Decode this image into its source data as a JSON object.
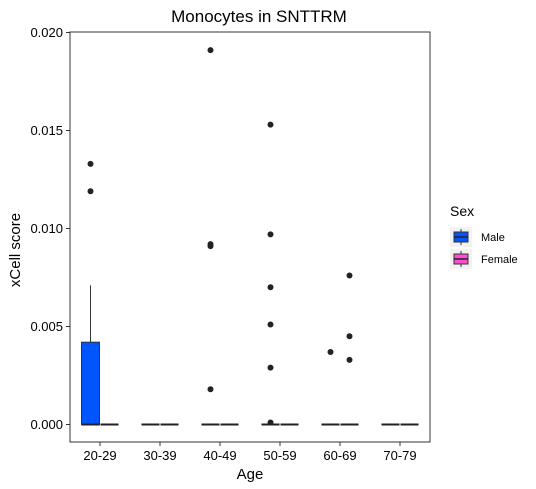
{
  "chart_data": {
    "type": "boxplot",
    "title": "Monocytes in SNTTRM",
    "xlabel": "Age",
    "ylabel": "xCell score",
    "ylim": [
      0,
      0.02
    ],
    "y_ticks": [
      "0.000",
      "0.005",
      "0.010",
      "0.015",
      "0.020"
    ],
    "categories": [
      "20-29",
      "30-39",
      "40-49",
      "50-59",
      "60-69",
      "70-79"
    ],
    "legend": {
      "title": "Sex",
      "position": "right",
      "entries": [
        {
          "label": "Male",
          "color": "#0055FF"
        },
        {
          "label": "Female",
          "color": "#FF4FD0"
        }
      ]
    },
    "grid": false,
    "series": [
      {
        "name": "Male",
        "color": "#0055FF",
        "boxes": [
          {
            "category": "20-29",
            "min": 0,
            "q1": 0,
            "median": 0,
            "q3": 0.0042,
            "max": 0.0071,
            "outliers": [
              0.0133,
              0.0119
            ]
          },
          {
            "category": "30-39",
            "min": 0,
            "q1": 0,
            "median": 0,
            "q3": 0,
            "max": 0,
            "outliers": []
          },
          {
            "category": "40-49",
            "min": 0,
            "q1": 0,
            "median": 0,
            "q3": 0,
            "max": 0,
            "outliers": [
              0.0191,
              0.0092,
              0.0091,
              0.0018
            ]
          },
          {
            "category": "50-59",
            "min": 0,
            "q1": 0,
            "median": 0,
            "q3": 0,
            "max": 0,
            "outliers": [
              0.0153,
              0.0097,
              0.007,
              0.0051,
              0.0029,
              0.0001
            ]
          },
          {
            "category": "60-69",
            "min": 0,
            "q1": 0,
            "median": 0,
            "q3": 0,
            "max": 0,
            "outliers": [
              0.0037
            ]
          },
          {
            "category": "70-79",
            "min": 0,
            "q1": 0,
            "median": 0,
            "q3": 0,
            "max": 0,
            "outliers": []
          }
        ]
      },
      {
        "name": "Female",
        "color": "#FF4FD0",
        "boxes": [
          {
            "category": "20-29",
            "min": 0,
            "q1": 0,
            "median": 0,
            "q3": 0,
            "max": 0,
            "outliers": []
          },
          {
            "category": "30-39",
            "min": 0,
            "q1": 0,
            "median": 0,
            "q3": 0,
            "max": 0,
            "outliers": []
          },
          {
            "category": "40-49",
            "min": 0,
            "q1": 0,
            "median": 0,
            "q3": 0,
            "max": 0,
            "outliers": []
          },
          {
            "category": "50-59",
            "min": 0,
            "q1": 0,
            "median": 0,
            "q3": 0,
            "max": 0,
            "outliers": []
          },
          {
            "category": "60-69",
            "min": 0,
            "q1": 0,
            "median": 0,
            "q3": 0,
            "max": 0,
            "outliers": [
              0.0076,
              0.0045,
              0.0033
            ]
          },
          {
            "category": "70-79",
            "min": 0,
            "q1": 0,
            "median": 0,
            "q3": 0,
            "max": 0,
            "outliers": []
          }
        ]
      }
    ]
  }
}
